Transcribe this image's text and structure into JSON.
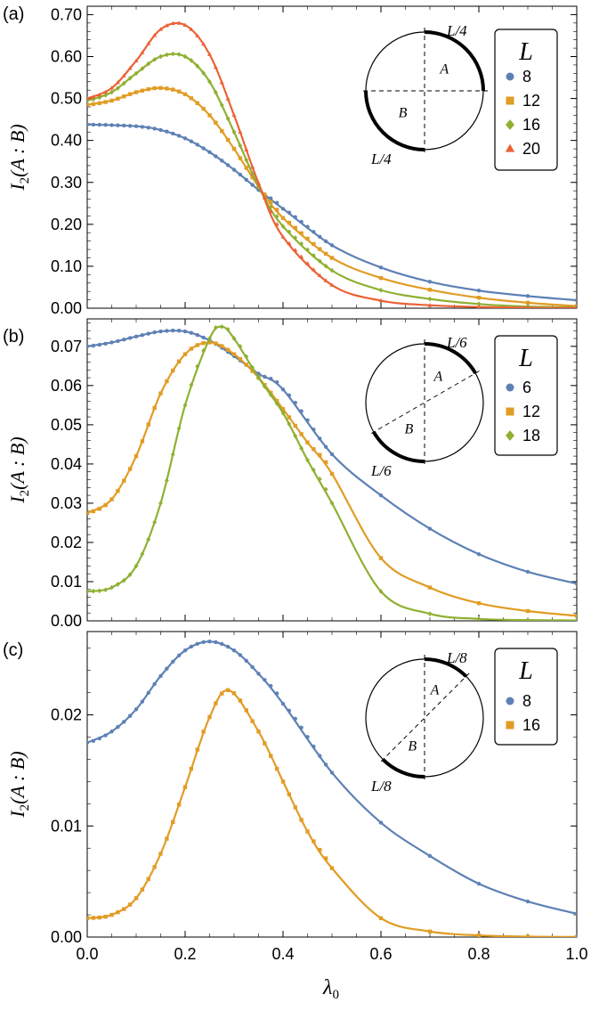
{
  "xlabel": "λ0",
  "ylabel": "I2(A : B)",
  "x_ticks": [
    "0.0",
    "0.2",
    "0.4",
    "0.6",
    "0.8",
    "1.0"
  ],
  "colors": {
    "blue": "#5E81B5",
    "orange": "#E19C24",
    "green": "#8FB032",
    "red": "#EB6235"
  },
  "chart_data": [
    {
      "type": "line",
      "panel": "(a)",
      "xlim": [
        0,
        1
      ],
      "ylim": [
        0,
        0.72
      ],
      "y_ticks": [
        0,
        0.1,
        0.2,
        0.3,
        0.4,
        0.5,
        0.6,
        0.7
      ],
      "y_tick_labels": [
        "0.00",
        "0.10",
        "0.20",
        "0.30",
        "0.40",
        "0.50",
        "0.60",
        "0.70"
      ],
      "legend_title": "L",
      "inset": {
        "arc": "90",
        "top_label": "L/4",
        "bottom_label": "L/4",
        "a_label": "A",
        "b_label": "B"
      },
      "series": [
        {
          "name": "8",
          "color": "#5E81B5",
          "marker": "circle",
          "x": [
            0,
            0.1,
            0.15,
            0.2,
            0.25,
            0.3,
            0.35,
            0.4,
            0.5,
            0.6,
            0.7,
            0.8,
            0.9,
            1.0
          ],
          "y": [
            0.438,
            0.434,
            0.425,
            0.405,
            0.372,
            0.33,
            0.282,
            0.237,
            0.15,
            0.097,
            0.063,
            0.042,
            0.029,
            0.019
          ]
        },
        {
          "name": "12",
          "color": "#E19C24",
          "marker": "square",
          "x": [
            0,
            0.05,
            0.1,
            0.15,
            0.2,
            0.25,
            0.3,
            0.35,
            0.4,
            0.5,
            0.6,
            0.7,
            0.8,
            0.9,
            1.0
          ],
          "y": [
            0.485,
            0.495,
            0.515,
            0.525,
            0.51,
            0.46,
            0.38,
            0.29,
            0.215,
            0.12,
            0.072,
            0.044,
            0.025,
            0.013,
            0.005
          ]
        },
        {
          "name": "16",
          "color": "#8FB032",
          "marker": "diamond",
          "x": [
            0,
            0.05,
            0.1,
            0.15,
            0.2,
            0.25,
            0.3,
            0.35,
            0.4,
            0.5,
            0.6,
            0.7,
            0.8,
            0.9,
            1.0
          ],
          "y": [
            0.495,
            0.515,
            0.56,
            0.6,
            0.6,
            0.54,
            0.42,
            0.29,
            0.195,
            0.09,
            0.043,
            0.022,
            0.01,
            0.004,
            0.002
          ]
        },
        {
          "name": "20",
          "color": "#EB6235",
          "marker": "triangle",
          "x": [
            0,
            0.05,
            0.1,
            0.15,
            0.2,
            0.25,
            0.3,
            0.35,
            0.4,
            0.5,
            0.6,
            0.7,
            0.8,
            0.9,
            1.0
          ],
          "y": [
            0.5,
            0.525,
            0.59,
            0.665,
            0.675,
            0.605,
            0.46,
            0.298,
            0.17,
            0.055,
            0.018,
            0.007,
            0.003,
            0.001,
            0.0005
          ]
        }
      ]
    },
    {
      "type": "line",
      "panel": "(b)",
      "xlim": [
        0,
        1
      ],
      "ylim": [
        0,
        0.077
      ],
      "y_ticks": [
        0,
        0.01,
        0.02,
        0.03,
        0.04,
        0.05,
        0.06,
        0.07
      ],
      "y_tick_labels": [
        "0.00",
        "0.01",
        "0.02",
        "0.03",
        "0.04",
        "0.05",
        "0.06",
        "0.07"
      ],
      "legend_title": "L",
      "inset": {
        "arc": "60",
        "top_label": "L/6",
        "bottom_label": "L/6",
        "a_label": "A",
        "b_label": "B"
      },
      "series": [
        {
          "name": "6",
          "color": "#5E81B5",
          "marker": "circle",
          "x": [
            0,
            0.05,
            0.1,
            0.15,
            0.2,
            0.25,
            0.3,
            0.35,
            0.4,
            0.5,
            0.6,
            0.7,
            0.8,
            0.9,
            1.0
          ],
          "y": [
            0.07,
            0.071,
            0.0725,
            0.0738,
            0.0738,
            0.0715,
            0.0675,
            0.063,
            0.059,
            0.0425,
            0.032,
            0.0235,
            0.017,
            0.0125,
            0.0095
          ]
        },
        {
          "name": "12",
          "color": "#E19C24",
          "marker": "square",
          "x": [
            0,
            0.05,
            0.1,
            0.15,
            0.2,
            0.25,
            0.3,
            0.35,
            0.4,
            0.45,
            0.5,
            0.6,
            0.7,
            0.8,
            0.9,
            1.0
          ],
          "y": [
            0.0275,
            0.031,
            0.042,
            0.058,
            0.068,
            0.071,
            0.068,
            0.062,
            0.054,
            0.0455,
            0.0375,
            0.016,
            0.0085,
            0.0045,
            0.0025,
            0.0013
          ]
        },
        {
          "name": "18",
          "color": "#8FB032",
          "marker": "diamond",
          "x": [
            0,
            0.05,
            0.1,
            0.15,
            0.2,
            0.25,
            0.275,
            0.3,
            0.35,
            0.4,
            0.45,
            0.5,
            0.6,
            0.7,
            0.8,
            0.9,
            1.0
          ],
          "y": [
            0.0075,
            0.0085,
            0.014,
            0.03,
            0.055,
            0.072,
            0.075,
            0.072,
            0.062,
            0.053,
            0.041,
            0.03,
            0.0075,
            0.0018,
            0.0005,
            0.0002,
            0.0001
          ]
        }
      ]
    },
    {
      "type": "line",
      "panel": "(c)",
      "xlim": [
        0,
        1
      ],
      "ylim": [
        0,
        0.0275
      ],
      "y_ticks": [
        0,
        0.01,
        0.02
      ],
      "y_tick_labels": [
        "0.00",
        "0.01",
        "0.02"
      ],
      "legend_title": "L",
      "inset": {
        "arc": "45",
        "top_label": "L/8",
        "bottom_label": "L/8",
        "a_label": "A",
        "b_label": "B"
      },
      "series": [
        {
          "name": "8",
          "color": "#5E81B5",
          "marker": "circle",
          "x": [
            0,
            0.05,
            0.1,
            0.15,
            0.2,
            0.25,
            0.3,
            0.35,
            0.4,
            0.5,
            0.6,
            0.7,
            0.8,
            0.9,
            1.0
          ],
          "y": [
            0.0175,
            0.0185,
            0.0205,
            0.0235,
            0.0258,
            0.0266,
            0.0258,
            0.0237,
            0.021,
            0.0148,
            0.0103,
            0.0073,
            0.0048,
            0.0032,
            0.0021
          ]
        },
        {
          "name": "16",
          "color": "#E19C24",
          "marker": "square",
          "x": [
            0,
            0.05,
            0.1,
            0.15,
            0.2,
            0.25,
            0.29,
            0.35,
            0.4,
            0.45,
            0.5,
            0.6,
            0.7,
            0.8,
            0.9,
            1.0
          ],
          "y": [
            0.0017,
            0.002,
            0.0035,
            0.0075,
            0.0135,
            0.0198,
            0.0222,
            0.0185,
            0.014,
            0.0095,
            0.0062,
            0.0017,
            0.0005,
            0.00015,
            4e-05,
            1e-05
          ]
        }
      ]
    }
  ]
}
